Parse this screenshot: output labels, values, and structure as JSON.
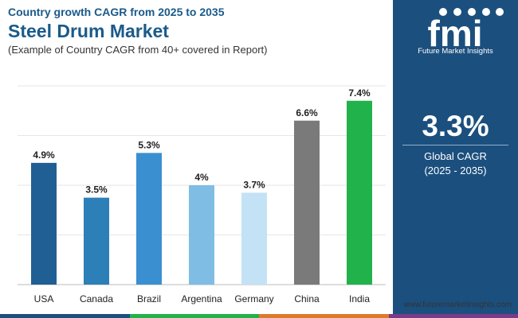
{
  "header": {
    "subtitle_top": "Country growth CAGR from 2025 to 2035",
    "title": "Steel Drum Market",
    "note": "(Example of Country CAGR from 40+ covered in Report)"
  },
  "chart_data": {
    "type": "bar",
    "title": "Steel Drum Market",
    "xlabel": "",
    "ylabel": "",
    "ylim": [
      0,
      8
    ],
    "grid": true,
    "categories": [
      "USA",
      "Canada",
      "Brazil",
      "Argentina",
      "Germany",
      "China",
      "India"
    ],
    "values": [
      4.9,
      3.5,
      5.3,
      4,
      3.7,
      6.6,
      7.4
    ],
    "value_labels": [
      "4.9%",
      "3.5%",
      "5.3%",
      "4%",
      "3.7%",
      "6.6%",
      "7.4%"
    ],
    "colors": [
      "#1f5f94",
      "#2d7fb8",
      "#3a8fd1",
      "#7fbde4",
      "#c4e2f6",
      "#7a7a7a",
      "#21b24b"
    ]
  },
  "sidepanel": {
    "logo_letters": "fmi",
    "logo_text": "Future Market Insights",
    "global_cagr_value": "3.3%",
    "global_cagr_label": "Global CAGR",
    "global_cagr_period": "(2025 - 2035)"
  },
  "footer": {
    "url": "www.futuremarketinsights.com",
    "strip_colors": [
      "#1b4f7e",
      "#21b24b",
      "#e07a2a",
      "#7a3a8a"
    ]
  }
}
